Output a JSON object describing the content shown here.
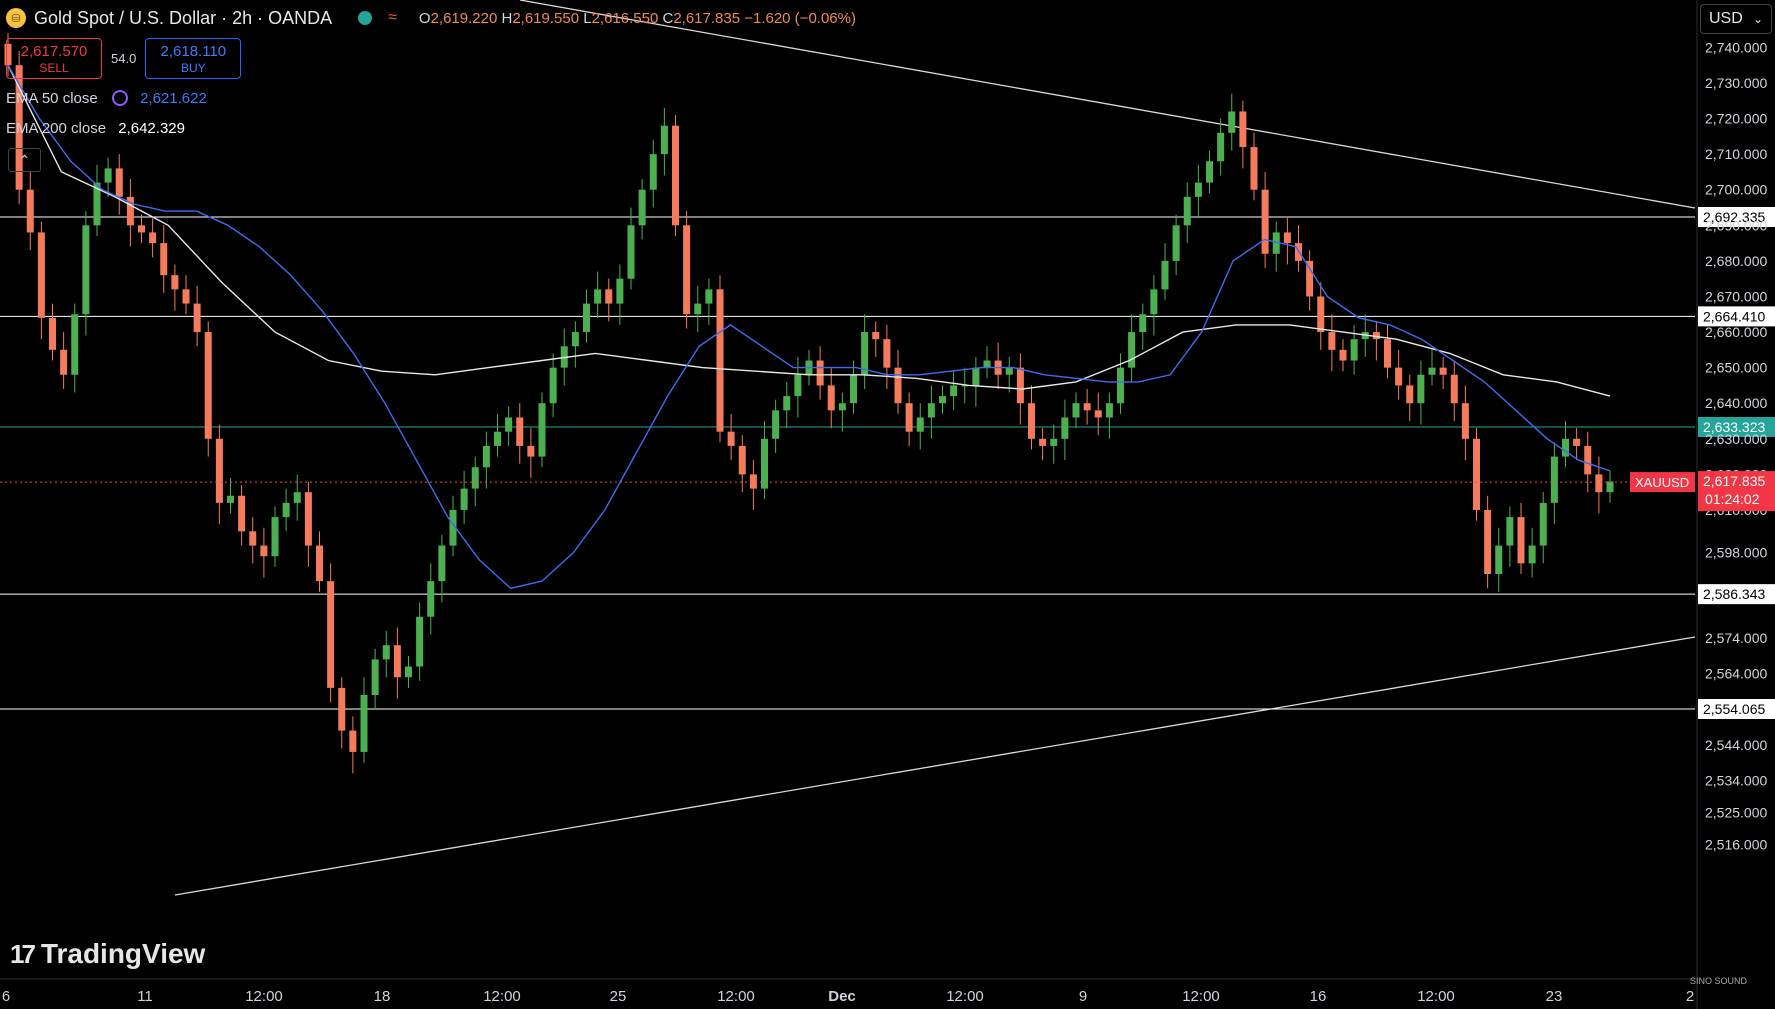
{
  "header": {
    "symbol_title": "Gold Spot / U.S. Dollar · 2h · OANDA",
    "ohlc": {
      "o_label": "O",
      "o": "2,619.220",
      "h_label": "H",
      "h": "2,619.550",
      "l_label": "L",
      "l": "2,616.550",
      "c_label": "C",
      "c": "2,617.835",
      "change": "−1.620 (−0.06%)"
    }
  },
  "trade": {
    "sell_price": "2,617.570",
    "sell_label": "SELL",
    "spread": "54.0",
    "buy_price": "2,618.110",
    "buy_label": "BUY"
  },
  "indicators": [
    {
      "label": "EMA 50 close",
      "value": "2,621.622",
      "color": "#2962ff"
    },
    {
      "label": "EMA 200 close",
      "value": "2,642.329",
      "color": "#ffffff"
    }
  ],
  "collapse_glyph": "⌃",
  "currency": "USD",
  "watermark": "TradingView",
  "corner_mark": "SINO SOUND",
  "colors": {
    "up": "#26a69a",
    "down": "#ef5350",
    "up_candle": "#4caf50",
    "down_candle": "#f57b5b"
  },
  "chart_data": {
    "type": "candlestick",
    "instrument": "XAUUSD",
    "timeframe": "2h",
    "ylim": [
      2508,
      2750
    ],
    "y_ticks": [
      2516,
      2525,
      2534,
      2544,
      2554,
      2564,
      2574,
      2586,
      2598,
      2610,
      2620,
      2630,
      2640,
      2650,
      2660,
      2670,
      2680,
      2690,
      2700,
      2710,
      2720,
      2730,
      2740
    ],
    "y_tick_labels": [
      "2,516.000",
      "2,525.000",
      "2,534.000",
      "2,544.000",
      "",
      "2,564.000",
      "2,574.000",
      "",
      "2,598.000",
      "2,610.000",
      "2,620.000",
      "2,630.000",
      "2,640.000",
      "2,650.000",
      "2,660.000",
      "2,670.000",
      "2,680.000",
      "2,690.000",
      "2,700.000",
      "2,710.000",
      "2,720.000",
      "2,730.000",
      "2,740.000"
    ],
    "x_labels": [
      "6",
      "11",
      "12:00",
      "18",
      "12:00",
      "25",
      "12:00",
      "Dec",
      "12:00",
      "9",
      "12:00",
      "16",
      "12:00",
      "23",
      "2"
    ],
    "horizontal_levels": [
      {
        "value": 2692.335,
        "label": "2,692.335",
        "color": "#ffffff"
      },
      {
        "value": 2664.41,
        "label": "2,664.410",
        "color": "#ffffff"
      },
      {
        "value": 2633.323,
        "label": "2,633.323",
        "color": "#26a69a"
      },
      {
        "value": 2586.343,
        "label": "2,586.343",
        "color": "#ffffff"
      },
      {
        "value": 2554.065,
        "label": "2,554.065",
        "color": "#ffffff"
      }
    ],
    "last_price": {
      "symbol": "XAUUSD",
      "value": 2617.835,
      "label": "2,617.835",
      "countdown": "01:24:02"
    },
    "close_series": [
      2735,
      2700,
      2688,
      2664,
      2655,
      2648,
      2665,
      2690,
      2702,
      2706,
      2698,
      2690,
      2688,
      2685,
      2676,
      2672,
      2668,
      2660,
      2630,
      2612,
      2614,
      2604,
      2600,
      2597,
      2608,
      2612,
      2615,
      2600,
      2590,
      2560,
      2548,
      2542,
      2558,
      2568,
      2572,
      2563,
      2566,
      2580,
      2590,
      2600,
      2610,
      2616,
      2622,
      2628,
      2632,
      2636,
      2628,
      2625,
      2640,
      2650,
      2656,
      2660,
      2668,
      2672,
      2668,
      2675,
      2690,
      2700,
      2710,
      2718,
      2690,
      2665,
      2668,
      2672,
      2632,
      2628,
      2620,
      2616,
      2630,
      2638,
      2642,
      2648,
      2652,
      2645,
      2638,
      2640,
      2648,
      2660,
      2658,
      2650,
      2640,
      2632,
      2636,
      2640,
      2642,
      2645,
      2645,
      2650,
      2652,
      2648,
      2650,
      2640,
      2630,
      2628,
      2630,
      2636,
      2640,
      2638,
      2636,
      2640,
      2650,
      2660,
      2665,
      2672,
      2680,
      2690,
      2698,
      2702,
      2708,
      2716,
      2722,
      2712,
      2700,
      2682,
      2688,
      2685,
      2680,
      2670,
      2660,
      2655,
      2652,
      2658,
      2660,
      2658,
      2650,
      2645,
      2640,
      2648,
      2650,
      2648,
      2640,
      2630,
      2610,
      2592,
      2600,
      2608,
      2595,
      2600,
      2612,
      2625,
      2630,
      2628,
      2620,
      2615,
      2618
    ],
    "ema50": [
      2735,
      2720,
      2708,
      2700,
      2696,
      2694,
      2694,
      2690,
      2684,
      2676,
      2666,
      2654,
      2640,
      2624,
      2608,
      2596,
      2588,
      2590,
      2598,
      2610,
      2626,
      2642,
      2656,
      2662,
      2656,
      2650,
      2650,
      2650,
      2648,
      2648,
      2649,
      2650,
      2650,
      2648,
      2647,
      2646,
      2646,
      2648,
      2660,
      2680,
      2686,
      2684,
      2670,
      2664,
      2662,
      2658,
      2652,
      2646,
      2638,
      2630,
      2624,
      2621
    ],
    "ema200": [
      2735,
      2705,
      2698,
      2690,
      2674,
      2660,
      2652,
      2649,
      2648,
      2650,
      2652,
      2654,
      2652,
      2650,
      2649,
      2648,
      2648,
      2647,
      2645,
      2644,
      2646,
      2652,
      2660,
      2662,
      2662,
      2660,
      2658,
      2654,
      2648,
      2646,
      2642
    ]
  }
}
